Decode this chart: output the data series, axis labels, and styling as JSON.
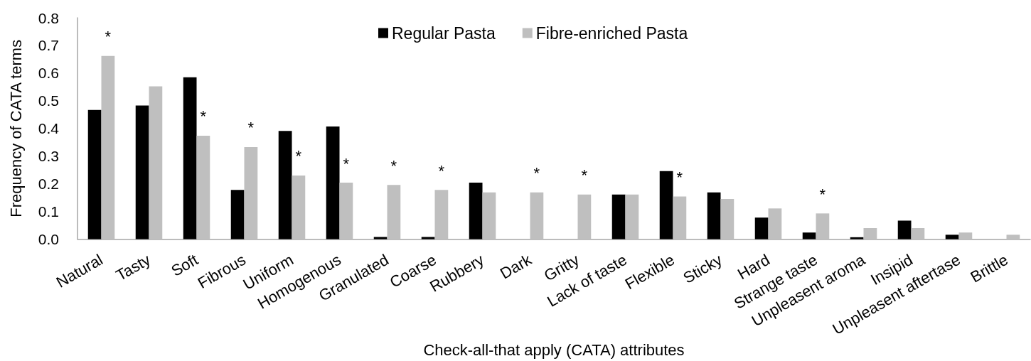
{
  "chart_data": {
    "type": "bar",
    "xlabel": "Check-all-that apply (CATA) attributes",
    "ylabel": "Frequency of CATA terms",
    "categories": [
      "Natural",
      "Tasty",
      "Soft",
      "Fibrous",
      "Uniform",
      "Homogenous",
      "Granulated",
      "Coarse",
      "Rubbery",
      "Dark",
      "Gritty",
      "Lack of taste",
      "Flexible",
      "Sticky",
      "Hard",
      "Strange taste",
      "Unpleasent aroma",
      "Insipid",
      "Unpleasent aftertase",
      "Brittle"
    ],
    "series": [
      {
        "name": "Regular Pasta",
        "color": "#000000",
        "values": [
          0.467,
          0.483,
          0.585,
          0.178,
          0.391,
          0.407,
          0.008,
          0.008,
          0.204,
          0,
          0,
          0.161,
          0.246,
          0.169,
          0.078,
          0.024,
          0.007,
          0.067,
          0.016,
          0
        ]
      },
      {
        "name": "Fibre-enriched Pasta",
        "color": "#bfbfbf",
        "values": [
          0.662,
          0.552,
          0.374,
          0.333,
          0.23,
          0.204,
          0.196,
          0.178,
          0.169,
          0.169,
          0.161,
          0.161,
          0.154,
          0.145,
          0.111,
          0.093,
          0.04,
          0.04,
          0.024,
          0.016
        ]
      }
    ],
    "ylim": [
      0,
      0.8
    ],
    "yticks": [
      {
        "value": 0,
        "label": "0.0"
      },
      0.1,
      0.2,
      0.3,
      0.4,
      0.5,
      0.6,
      0.7,
      0.8
    ],
    "legend": "top",
    "annotations": [
      {
        "text": "*",
        "x": "Natural",
        "y": 0.662
      },
      {
        "text": "*",
        "x": "Soft",
        "y": 0.374
      },
      {
        "text": "*",
        "x": "Fibrous",
        "y": 0.333
      },
      {
        "text": "*",
        "x": "Uniform",
        "y": 0.23
      },
      {
        "text": "*",
        "x": "Homogenous",
        "y": 0.204
      },
      {
        "text": "*",
        "x": "Granulated",
        "y": 0.196
      },
      {
        "text": "*",
        "x": "Coarse",
        "y": 0.178
      },
      {
        "text": "*",
        "x": "Dark",
        "y": 0.169
      },
      {
        "text": "*",
        "x": "Gritty",
        "y": 0.161
      },
      {
        "text": "*",
        "x": "Flexible",
        "y": 0.154
      },
      {
        "text": "*",
        "x": "Strange taste",
        "y": 0.093
      }
    ]
  }
}
